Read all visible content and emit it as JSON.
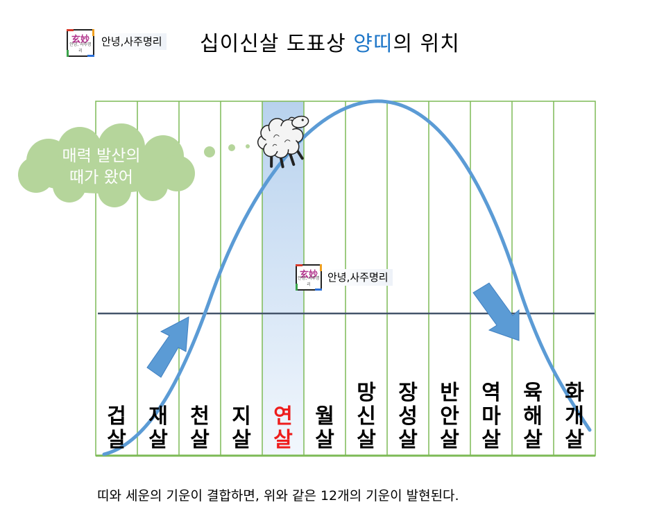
{
  "brand": {
    "logo_text": "玄妙",
    "logo_sub": "안녕, 사주명리",
    "name": "안녕,사주명리"
  },
  "title": {
    "prefix": "십이신살 도표상 ",
    "highlight": "양띠",
    "suffix": "의 위치"
  },
  "cloud": {
    "line1": "매력 발산의",
    "line2": "때가 왔어"
  },
  "columns": [
    {
      "top": "겁",
      "bottom": "살",
      "highlight": false
    },
    {
      "top": "재",
      "bottom": "살",
      "highlight": false
    },
    {
      "top": "천",
      "bottom": "살",
      "highlight": false
    },
    {
      "top": "지",
      "bottom": "살",
      "highlight": false
    },
    {
      "top": "연",
      "bottom": "살",
      "highlight": true
    },
    {
      "top": "월",
      "bottom": "살",
      "highlight": false
    },
    {
      "top": "망",
      "middle": "신",
      "bottom": "살",
      "highlight": false
    },
    {
      "top": "장",
      "middle": "성",
      "bottom": "살",
      "highlight": false
    },
    {
      "top": "반",
      "middle": "안",
      "bottom": "살",
      "highlight": false
    },
    {
      "top": "역",
      "middle": "마",
      "bottom": "살",
      "highlight": false
    },
    {
      "top": "육",
      "middle": "해",
      "bottom": "살",
      "highlight": false
    },
    {
      "top": "화",
      "middle": "개",
      "bottom": "살",
      "highlight": false
    }
  ],
  "caption": "띠와 세운의 기운이 결합하면, 위와 같은 12개의 기운이 발현된다.",
  "colors": {
    "grid": "#7dba56",
    "curve": "#5b9bd5",
    "arrow": "#5b9bd5",
    "baseline": "#44546a",
    "highlight_fill": "#dbe8f7",
    "title_highlight": "#1f77c8",
    "label_highlight": "#ee1c1c",
    "cloud": "#b5d59b"
  },
  "icons": [
    "brand-logo-icon",
    "sheep-icon",
    "up-arrow-icon",
    "down-arrow-icon",
    "thought-cloud-icon"
  ]
}
